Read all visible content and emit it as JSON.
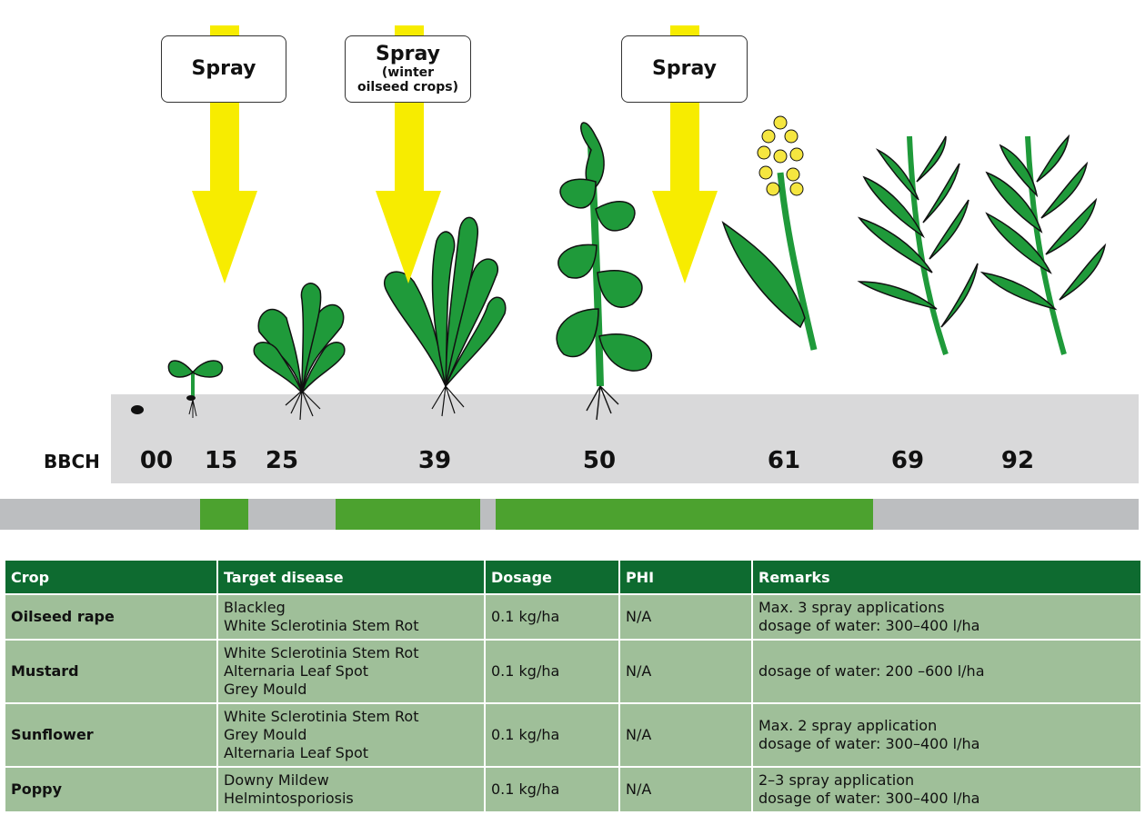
{
  "spray_labels": [
    {
      "main": "Spray",
      "sub": ""
    },
    {
      "main": "Spray",
      "sub": "(winter oilseed crops)",
      "sub_lines": [
        "(winter",
        "oilseed crops)"
      ]
    },
    {
      "main": "Spray",
      "sub": ""
    }
  ],
  "bbch": {
    "label": "BBCH",
    "stages": [
      "00",
      "15",
      "25",
      "39",
      "50",
      "61",
      "69",
      "92"
    ]
  },
  "colors": {
    "arrow": "#f7ec00",
    "leaf": "#1f9a3a",
    "soil": "#d9d9da",
    "bar_gray": "#bcbec0",
    "bar_green": "#4ca22f",
    "header": "#0e6b30",
    "row": "#9fbf99",
    "flower": "#f5e640"
  },
  "table": {
    "headers": [
      "Crop",
      "Target disease",
      "Dosage",
      "PHI",
      "Remarks"
    ],
    "rows": [
      {
        "crop": "Oilseed rape",
        "disease": [
          "Blackleg",
          "White Sclerotinia Stem Rot"
        ],
        "dosage": "0.1 kg/ha",
        "phi": "N/A",
        "remarks": [
          "Max. 3 spray applications",
          "dosage of water: 300–400 l/ha"
        ]
      },
      {
        "crop": "Mustard",
        "disease": [
          "White Sclerotinia Stem Rot",
          "Alternaria Leaf Spot",
          "Grey Mould"
        ],
        "dosage": "0.1 kg/ha",
        "phi": "N/A",
        "remarks": [
          "dosage of water: 200 –600 l/ha"
        ]
      },
      {
        "crop": "Sunflower",
        "disease": [
          "White Sclerotinia Stem Rot",
          "Grey Mould",
          "Alternaria Leaf Spot"
        ],
        "dosage": "0.1 kg/ha",
        "phi": "N/A",
        "remarks": [
          "Max. 2 spray application",
          "dosage of water: 300–400 l/ha"
        ]
      },
      {
        "crop": "Poppy",
        "disease": [
          "Downy Mildew",
          "Helmintosporiosis"
        ],
        "dosage": "0.1 kg/ha",
        "phi": "N/A",
        "remarks": [
          "2–3 spray application",
          "dosage of water: 300–400 l/ha"
        ]
      }
    ]
  }
}
